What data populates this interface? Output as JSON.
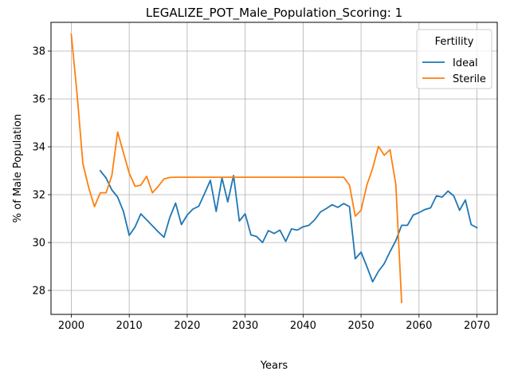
{
  "chart_data": {
    "type": "line",
    "title": "LEGALIZE_POT_Male_Population_Scoring: 1",
    "xlabel": "Years",
    "ylabel": "% of Male Population",
    "xlim": [
      1996.5,
      2073.5
    ],
    "ylim": [
      27.0,
      39.2
    ],
    "xticks": [
      2000,
      2010,
      2020,
      2030,
      2040,
      2050,
      2060,
      2070
    ],
    "yticks": [
      28,
      30,
      32,
      34,
      36,
      38
    ],
    "grid": true,
    "legend": {
      "title": "Fertility",
      "placement": "top-right"
    },
    "series": [
      {
        "name": "Ideal",
        "color": "#1f77b4",
        "points": [
          [
            2005,
            33.0
          ],
          [
            2006,
            32.7
          ],
          [
            2007,
            32.2
          ],
          [
            2008,
            31.9
          ],
          [
            2009,
            31.3
          ],
          [
            2010,
            30.3
          ],
          [
            2011,
            30.65
          ],
          [
            2012,
            31.2
          ],
          [
            2013,
            30.95
          ],
          [
            2014,
            30.7
          ],
          [
            2015,
            30.45
          ],
          [
            2016,
            30.22
          ],
          [
            2017,
            31.05
          ],
          [
            2018,
            31.65
          ],
          [
            2019,
            30.75
          ],
          [
            2020,
            31.15
          ],
          [
            2021,
            31.4
          ],
          [
            2022,
            31.52
          ],
          [
            2023,
            32.05
          ],
          [
            2024,
            32.6
          ],
          [
            2025,
            31.3
          ],
          [
            2026,
            32.7
          ],
          [
            2027,
            31.7
          ],
          [
            2028,
            32.8
          ],
          [
            2029,
            30.9
          ],
          [
            2030,
            31.2
          ],
          [
            2031,
            30.32
          ],
          [
            2032,
            30.25
          ],
          [
            2033,
            30.0
          ],
          [
            2034,
            30.5
          ],
          [
            2035,
            30.38
          ],
          [
            2036,
            30.52
          ],
          [
            2037,
            30.05
          ],
          [
            2038,
            30.57
          ],
          [
            2039,
            30.52
          ],
          [
            2040,
            30.66
          ],
          [
            2041,
            30.72
          ],
          [
            2042,
            30.95
          ],
          [
            2043,
            31.28
          ],
          [
            2044,
            31.42
          ],
          [
            2045,
            31.58
          ],
          [
            2046,
            31.47
          ],
          [
            2047,
            31.63
          ],
          [
            2048,
            31.5
          ],
          [
            2049,
            29.32
          ],
          [
            2050,
            29.6
          ],
          [
            2051,
            29.0
          ],
          [
            2052,
            28.36
          ],
          [
            2053,
            28.8
          ],
          [
            2054,
            29.12
          ],
          [
            2055,
            29.62
          ],
          [
            2056,
            30.08
          ],
          [
            2057,
            30.72
          ],
          [
            2058,
            30.72
          ],
          [
            2059,
            31.15
          ],
          [
            2060,
            31.25
          ],
          [
            2061,
            31.38
          ],
          [
            2062,
            31.45
          ],
          [
            2063,
            31.95
          ],
          [
            2064,
            31.9
          ],
          [
            2065,
            32.15
          ],
          [
            2066,
            31.95
          ],
          [
            2067,
            31.35
          ],
          [
            2068,
            31.78
          ],
          [
            2069,
            30.75
          ],
          [
            2070,
            30.62
          ]
        ]
      },
      {
        "name": "Sterile",
        "color": "#ff7f0e",
        "points": [
          [
            2000,
            38.7
          ],
          [
            2001,
            36.2
          ],
          [
            2002,
            33.3
          ],
          [
            2003,
            32.3
          ],
          [
            2004,
            31.5
          ],
          [
            2005,
            32.08
          ],
          [
            2006,
            32.08
          ],
          [
            2007,
            32.8
          ],
          [
            2008,
            34.62
          ],
          [
            2009,
            33.75
          ],
          [
            2010,
            32.9
          ],
          [
            2011,
            32.35
          ],
          [
            2012,
            32.4
          ],
          [
            2013,
            32.77
          ],
          [
            2014,
            32.08
          ],
          [
            2015,
            32.35
          ],
          [
            2016,
            32.66
          ],
          [
            2017,
            32.72
          ],
          [
            2018,
            32.73
          ],
          [
            2020,
            32.73
          ],
          [
            2025,
            32.73
          ],
          [
            2030,
            32.73
          ],
          [
            2035,
            32.73
          ],
          [
            2040,
            32.73
          ],
          [
            2045,
            32.73
          ],
          [
            2047,
            32.73
          ],
          [
            2048,
            32.4
          ],
          [
            2049,
            31.1
          ],
          [
            2050,
            31.35
          ],
          [
            2051,
            32.4
          ],
          [
            2052,
            33.1
          ],
          [
            2053,
            34.02
          ],
          [
            2054,
            33.65
          ],
          [
            2055,
            33.88
          ],
          [
            2056,
            32.42
          ],
          [
            2057,
            27.5
          ]
        ]
      }
    ]
  }
}
